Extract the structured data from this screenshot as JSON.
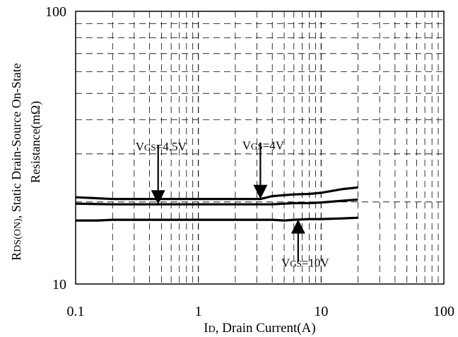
{
  "chart_data": {
    "type": "line",
    "x_scale": "log",
    "y_scale": "log",
    "xlim": [
      0.1,
      100
    ],
    "ylim": [
      10,
      100
    ],
    "grid": true,
    "xlabel": {
      "main": "I",
      "sub": "D",
      "rest": ", Drain Current(A)"
    },
    "ylabel": {
      "line1": {
        "main": "R",
        "sub": "DS(ON)",
        "rest": ", Static Drain-Source On-State"
      },
      "line2": "Resistance(mΩ)"
    },
    "x_ticks": [
      "0.1",
      "1",
      "10",
      "100"
    ],
    "y_ticks": [
      "10",
      "100"
    ],
    "series": [
      {
        "name": "VGS=4V",
        "x": [
          0.1,
          0.2,
          0.5,
          1,
          2,
          3.2,
          4,
          6,
          8,
          10,
          15,
          20
        ],
        "y": [
          20.8,
          20.5,
          20.5,
          20.5,
          20.5,
          20.5,
          21.0,
          21.3,
          21.4,
          21.6,
          22.3,
          22.6
        ]
      },
      {
        "name": "VGS=4.5V",
        "x": [
          0.1,
          0.2,
          0.5,
          1,
          2,
          3,
          4,
          6,
          8,
          10,
          15,
          20
        ],
        "y": [
          19.7,
          19.6,
          19.6,
          19.6,
          19.6,
          19.6,
          19.6,
          19.8,
          19.8,
          19.9,
          20.2,
          20.4
        ]
      },
      {
        "name": "VGS=10V",
        "x": [
          0.1,
          0.15,
          0.2,
          0.5,
          1,
          2,
          3,
          4,
          5,
          6,
          8,
          10,
          15,
          20
        ],
        "y": [
          17.1,
          17.1,
          17.2,
          17.2,
          17.2,
          17.2,
          17.2,
          17.2,
          17.1,
          17.2,
          17.3,
          17.3,
          17.4,
          17.5
        ]
      }
    ],
    "annotations": [
      {
        "label": {
          "main": "V",
          "sub": "GS",
          "rest": "=4.5V"
        },
        "tip_x": 0.47,
        "tip_y": 19.6,
        "dir": "down"
      },
      {
        "label": {
          "main": "V",
          "sub": "GS",
          "rest": "=4V"
        },
        "tip_x": 3.2,
        "tip_y": 20.5,
        "dir": "down"
      },
      {
        "label": {
          "main": "V",
          "sub": "GS",
          "rest": "=10V"
        },
        "tip_x": 6.5,
        "tip_y": 17.25,
        "dir": "up"
      }
    ]
  }
}
